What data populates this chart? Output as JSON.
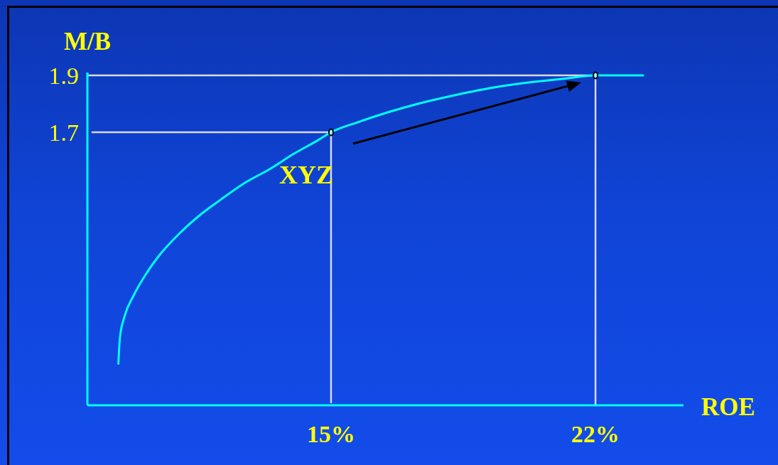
{
  "chart_data": {
    "type": "line",
    "xlabel": "ROE",
    "ylabel": "M/B",
    "xlim": [
      8.55,
      24.33
    ],
    "ylim": [
      0.74,
      1.91
    ],
    "xticks": [
      {
        "value": 15,
        "label": "15%"
      },
      {
        "value": 22,
        "label": "22%"
      }
    ],
    "yticks": [
      1.7,
      1.9
    ],
    "annotations": [
      {
        "text": "XYZ",
        "x": 15,
        "y": 1.7
      }
    ],
    "series": [
      {
        "color": "#d9d9e6",
        "x": [
          8.55,
          22,
          22
        ],
        "values": [
          1.9,
          1.9,
          0.74
        ]
      },
      {
        "color": "#d9d9e6",
        "x": [
          8.68,
          15,
          15
        ],
        "values": [
          1.7,
          1.7,
          0.75
        ]
      },
      {
        "color": "#00ffff",
        "x": [
          9.37,
          9.41,
          9.53,
          9.77,
          10.09,
          10.49,
          10.97,
          11.45,
          12.09,
          12.73,
          13.37,
          14.0,
          14.64,
          15,
          15.77,
          16.5,
          17.3,
          18.2,
          19.2,
          20.3,
          21.2,
          22,
          23.26
        ],
        "values": [
          0.886,
          0.976,
          1.051,
          1.125,
          1.199,
          1.273,
          1.342,
          1.4,
          1.464,
          1.523,
          1.57,
          1.623,
          1.671,
          1.7,
          1.738,
          1.77,
          1.8,
          1.828,
          1.855,
          1.876,
          1.889,
          1.9,
          1.9
        ]
      },
      {
        "type": "scatter",
        "color": "#000000",
        "marker": "circle",
        "x": [
          15,
          22
        ],
        "values": [
          1.7,
          1.9
        ]
      }
    ]
  }
}
